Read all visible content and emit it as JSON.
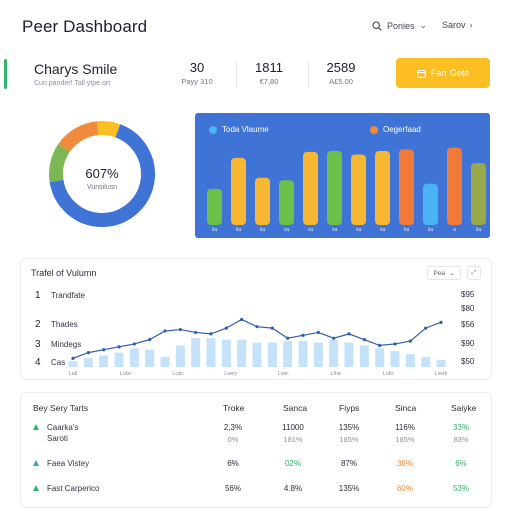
{
  "header": {
    "title": "Peer Dashboard",
    "search_label": "Ponies",
    "user_label": "Sarov"
  },
  "profile": {
    "name": "Charys Smile",
    "subtitle": "Cun pander! Tall ytpe.ort",
    "stats": [
      {
        "value": "30",
        "label": "Payy 310"
      },
      {
        "value": "1811",
        "label": "€7,80"
      },
      {
        "value": "2589",
        "label": "A£5.00"
      }
    ],
    "cta_label": "Farr Gete"
  },
  "donut": {
    "center_value": "607%",
    "center_label": "Vunsilusn",
    "segments": [
      {
        "value": 67,
        "color": "#3f74d6"
      },
      {
        "value": 12,
        "color": "#7cb854"
      },
      {
        "value": 14,
        "color": "#f08a3c"
      },
      {
        "value": 7,
        "color": "#fbbf24"
      }
    ]
  },
  "bar_panel": {
    "legend": [
      {
        "label": "Toda Vlaume",
        "color": "#4ab3f4"
      },
      {
        "label": "Oegerfaad",
        "color": "#f08a3c"
      }
    ],
    "chart_data": {
      "type": "bar",
      "categories": [
        "ka",
        "ka",
        "ka",
        "va",
        "va",
        "na",
        "na",
        "na",
        "ha",
        "ka",
        "a",
        "ka"
      ],
      "values": [
        42,
        78,
        55,
        52,
        85,
        86,
        82,
        86,
        88,
        48,
        90,
        72
      ],
      "colors": [
        "#6cc04a",
        "#f7b733",
        "#f7b733",
        "#6cc04a",
        "#f7b733",
        "#6cc04a",
        "#f7b733",
        "#f7b733",
        "#f07a3a",
        "#4ab3f4",
        "#f07a3a",
        "#9aa84a"
      ],
      "ylim": [
        0,
        100
      ]
    }
  },
  "line_card": {
    "title": "Trafel of Vulumn",
    "control_label": "Pea",
    "ranks": [
      {
        "n": "1",
        "label": "Trandfate"
      },
      {
        "n": "2",
        "label": "Thades"
      },
      {
        "n": "3",
        "label": "Mindegs"
      },
      {
        "n": "4",
        "label": "Cas"
      }
    ],
    "right_values": [
      "$95",
      "$80",
      "$56",
      "$90",
      "$50"
    ],
    "chart_data": {
      "type": "line",
      "x": [
        "Lal",
        "Lal",
        "Lal",
        "Lal",
        "Lal",
        "Lal",
        "Lal",
        "Lal",
        "Lal",
        "Lal",
        "Lal",
        "Lal",
        "Lal",
        "Lal",
        "Lal",
        "Lal",
        "Lal",
        "Lal",
        "Lal",
        "Lal",
        "Lal",
        "Lal",
        "Lal",
        "Lal",
        "Lal"
      ],
      "tick_labels": [
        "Lail",
        "Lubc",
        "Lutic",
        "Lwey",
        "Lwic",
        "Lihe",
        "Lutic",
        "Liwrk"
      ],
      "line": [
        12,
        20,
        24,
        28,
        32,
        38,
        50,
        52,
        48,
        46,
        54,
        66,
        56,
        54,
        40,
        44,
        48,
        40,
        46,
        38,
        30,
        32,
        36,
        54,
        62
      ],
      "bars": [
        8,
        12,
        16,
        20,
        26,
        24,
        14,
        30,
        40,
        40,
        38,
        38,
        34,
        34,
        36,
        36,
        34,
        38,
        34,
        30,
        26,
        22,
        18,
        14,
        10
      ],
      "ylim": [
        0,
        100
      ]
    }
  },
  "table": {
    "title": "Bey Sery Tarts",
    "headers": [
      "Troke",
      "Sanca",
      "Fiyps",
      "Sinca",
      "Saiyke"
    ],
    "rows": [
      {
        "label": "Caarka's",
        "label2": "Saroti",
        "icon_color": "#2fb66a",
        "cells": [
          "2,3%",
          "11000",
          "135%",
          "116%",
          "33%"
        ],
        "subcells": [
          "0%",
          "181%",
          "185%",
          "185%",
          "83%"
        ],
        "colors": [
          "#2a2f3c",
          "#2a2f3c",
          "#2a2f3c",
          "#2a2f3c",
          "#2fb66a"
        ]
      },
      {
        "label": "Faea Vistey",
        "label2": "",
        "icon_color": "#3aa0c8",
        "cells": [
          "6%",
          "02%",
          "87%",
          "36%",
          "6%"
        ],
        "subcells": [
          "",
          "",
          "",
          "",
          ""
        ],
        "colors": [
          "#2a2f3c",
          "#2fb66a",
          "#2a2f3c",
          "#f08a3c",
          "#2fb66a"
        ]
      },
      {
        "label": "Fast Carperico",
        "label2": "",
        "icon_color": "#2fb66a",
        "cells": [
          "56%",
          "4.8%",
          "135%",
          "60%",
          "53%"
        ],
        "subcells": [
          "",
          "",
          "",
          "",
          ""
        ],
        "colors": [
          "#2a2f3c",
          "#2a2f3c",
          "#2a2f3c",
          "#f08a3c",
          "#2fb66a"
        ]
      }
    ]
  }
}
